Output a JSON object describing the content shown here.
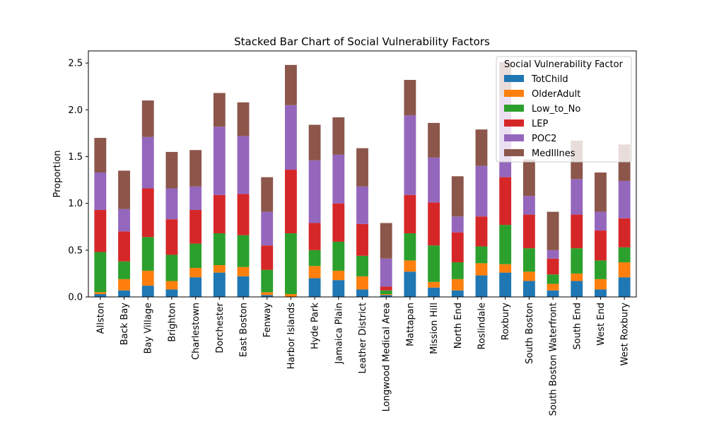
{
  "chart_data": {
    "type": "bar",
    "stacked": true,
    "title": "Stacked Bar Chart of Social Vulnerability Factors",
    "xlabel": "",
    "ylabel": "Proportion",
    "ylim": [
      0,
      2.63
    ],
    "yticks": [
      0.0,
      0.5,
      1.0,
      1.5,
      2.0,
      2.5
    ],
    "ytick_labels": [
      "0.0",
      "0.5",
      "1.0",
      "1.5",
      "2.0",
      "2.5"
    ],
    "grid": false,
    "legend": {
      "title": "Social Vulnerability Factor",
      "position": "top-right"
    },
    "categories": [
      "Allston",
      "Back Bay",
      "Bay Village",
      "Brighton",
      "Charlestown",
      "Dorchester",
      "East Boston",
      "Fenway",
      "Harbor Islands",
      "Hyde Park",
      "Jamaica Plain",
      "Leather District",
      "Longwood Medical Area",
      "Mattapan",
      "Mission Hill",
      "North End",
      "Roslindale",
      "Roxbury",
      "South Boston",
      "South Boston Waterfront",
      "South End",
      "West End",
      "West Roxbury"
    ],
    "series": [
      {
        "name": "TotChild",
        "color": "#1f77b4",
        "values": [
          0.03,
          0.07,
          0.12,
          0.08,
          0.21,
          0.26,
          0.22,
          0.02,
          0.0,
          0.2,
          0.18,
          0.08,
          0.02,
          0.27,
          0.1,
          0.07,
          0.23,
          0.26,
          0.17,
          0.07,
          0.17,
          0.08,
          0.21
        ]
      },
      {
        "name": "OlderAdult",
        "color": "#ff7f0e",
        "values": [
          0.02,
          0.12,
          0.16,
          0.09,
          0.1,
          0.08,
          0.1,
          0.03,
          0.03,
          0.13,
          0.1,
          0.14,
          0.01,
          0.12,
          0.06,
          0.12,
          0.13,
          0.09,
          0.1,
          0.07,
          0.08,
          0.11,
          0.16
        ]
      },
      {
        "name": "Low_to_No",
        "color": "#2ca02c",
        "values": [
          0.43,
          0.19,
          0.36,
          0.28,
          0.26,
          0.34,
          0.34,
          0.24,
          0.65,
          0.17,
          0.31,
          0.22,
          0.04,
          0.29,
          0.39,
          0.18,
          0.18,
          0.42,
          0.25,
          0.1,
          0.27,
          0.2,
          0.16
        ]
      },
      {
        "name": "LEP",
        "color": "#d62728",
        "values": [
          0.45,
          0.32,
          0.52,
          0.38,
          0.36,
          0.41,
          0.44,
          0.26,
          0.68,
          0.29,
          0.41,
          0.34,
          0.04,
          0.41,
          0.46,
          0.32,
          0.32,
          0.51,
          0.36,
          0.17,
          0.36,
          0.32,
          0.31
        ]
      },
      {
        "name": "POC2",
        "color": "#9467bd",
        "values": [
          0.4,
          0.24,
          0.55,
          0.33,
          0.25,
          0.73,
          0.62,
          0.36,
          0.69,
          0.67,
          0.52,
          0.4,
          0.3,
          0.85,
          0.48,
          0.17,
          0.54,
          0.86,
          0.2,
          0.09,
          0.38,
          0.2,
          0.4
        ]
      },
      {
        "name": "MedIllnes",
        "color": "#8c564b",
        "values": [
          0.37,
          0.41,
          0.39,
          0.39,
          0.39,
          0.36,
          0.36,
          0.37,
          0.43,
          0.38,
          0.4,
          0.41,
          0.38,
          0.38,
          0.37,
          0.43,
          0.39,
          0.37,
          0.39,
          0.41,
          0.41,
          0.42,
          0.39
        ]
      }
    ]
  }
}
